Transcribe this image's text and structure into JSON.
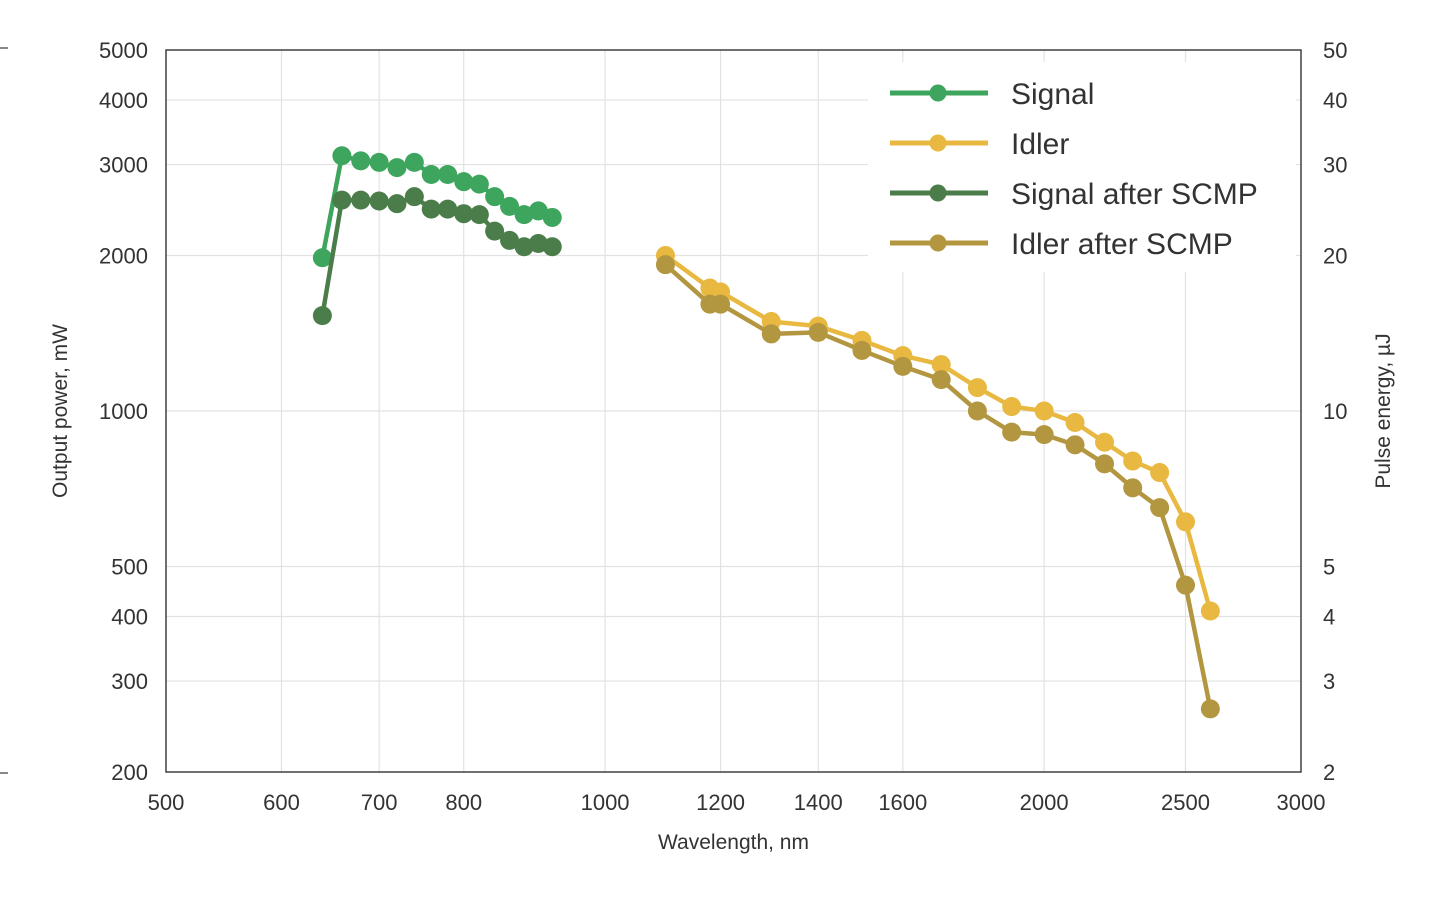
{
  "chart_data": {
    "type": "line",
    "title": "",
    "xlabel": "Wavelength, nm",
    "ylabel": "Output power, mW",
    "y2label": "Pulse energy, µJ",
    "xscale": "log",
    "yscale": "log",
    "xlim": [
      500,
      3000
    ],
    "ylim": [
      200,
      5000
    ],
    "y2lim": [
      2,
      50
    ],
    "xticks": [
      500,
      600,
      700,
      800,
      1000,
      1200,
      1400,
      1600,
      2000,
      2500,
      3000
    ],
    "yticks": [
      200,
      300,
      400,
      500,
      1000,
      2000,
      3000,
      4000,
      5000
    ],
    "y2ticks": [
      2,
      3,
      4,
      5,
      10,
      20,
      30,
      40,
      50
    ],
    "grid": true,
    "legend_position": "top-right",
    "series": [
      {
        "name": "Signal",
        "color": "#3ea55e",
        "x": [
          640,
          660,
          680,
          700,
          720,
          740,
          760,
          780,
          800,
          820,
          840,
          860,
          880,
          900,
          920
        ],
        "y": [
          1980,
          3120,
          3050,
          3030,
          2960,
          3030,
          2870,
          2870,
          2780,
          2750,
          2600,
          2490,
          2400,
          2440,
          2370
        ]
      },
      {
        "name": "Idler",
        "color": "#e8b840",
        "x": [
          1100,
          1180,
          1200,
          1300,
          1400,
          1500,
          1600,
          1700,
          1800,
          1900,
          2000,
          2100,
          2200,
          2300,
          2400,
          2500,
          2600
        ],
        "y": [
          2000,
          1730,
          1700,
          1490,
          1460,
          1370,
          1280,
          1230,
          1110,
          1020,
          1000,
          950,
          870,
          800,
          760,
          610,
          410
        ]
      },
      {
        "name": "Signal after SCMP",
        "color": "#4a7d4a",
        "x": [
          640,
          660,
          680,
          700,
          720,
          740,
          760,
          780,
          800,
          820,
          840,
          860,
          880,
          900,
          920
        ],
        "y": [
          1530,
          2560,
          2560,
          2550,
          2520,
          2600,
          2460,
          2460,
          2410,
          2400,
          2230,
          2140,
          2080,
          2110,
          2080
        ]
      },
      {
        "name": "Idler after SCMP",
        "color": "#b39640",
        "x": [
          1100,
          1180,
          1200,
          1300,
          1400,
          1500,
          1600,
          1700,
          1800,
          1900,
          2000,
          2100,
          2200,
          2300,
          2400,
          2500,
          2600
        ],
        "y": [
          1920,
          1610,
          1610,
          1410,
          1420,
          1310,
          1220,
          1150,
          1000,
          910,
          900,
          860,
          790,
          710,
          650,
          460,
          265
        ]
      }
    ]
  }
}
